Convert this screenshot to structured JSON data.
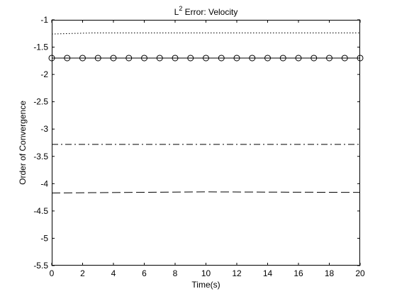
{
  "chart_data": {
    "type": "line",
    "title": {
      "prefix": "L",
      "superscript": "2",
      "text": " Error: Velocity"
    },
    "xlabel": "Time(s)",
    "ylabel": "Order of Convergence",
    "xlim": [
      0,
      20
    ],
    "ylim": [
      -5.5,
      -1
    ],
    "xticks": [
      "0",
      "2",
      "4",
      "6",
      "8",
      "10",
      "12",
      "14",
      "16",
      "18",
      "20"
    ],
    "yticks": [
      "-1",
      "-1.5",
      "-2",
      "-2.5",
      "-3",
      "-3.5",
      "-4",
      "-4.5",
      "-5",
      "-5.5"
    ],
    "grid": false,
    "series": [
      {
        "style": "dotted",
        "color": "#000000",
        "x": [
          0,
          2.6,
          20
        ],
        "y": [
          -1.26,
          -1.24,
          -1.24
        ]
      },
      {
        "style": "solid-circle",
        "color": "#000000",
        "x": [
          0,
          1,
          2,
          3,
          4,
          5,
          6,
          7,
          8,
          9,
          10,
          11,
          12,
          13,
          14,
          15,
          16,
          17,
          18,
          19,
          20
        ],
        "y": [
          -1.7,
          -1.7,
          -1.7,
          -1.7,
          -1.7,
          -1.7,
          -1.7,
          -1.7,
          -1.7,
          -1.7,
          -1.7,
          -1.7,
          -1.7,
          -1.7,
          -1.7,
          -1.7,
          -1.7,
          -1.7,
          -1.7,
          -1.7,
          -1.7
        ]
      },
      {
        "style": "dashdot",
        "color": "#000000",
        "x": [
          0,
          20
        ],
        "y": [
          -3.28,
          -3.28
        ]
      },
      {
        "style": "dashed",
        "color": "#000000",
        "x": [
          0,
          10,
          20
        ],
        "y": [
          -4.17,
          -4.15,
          -4.16
        ]
      }
    ]
  }
}
